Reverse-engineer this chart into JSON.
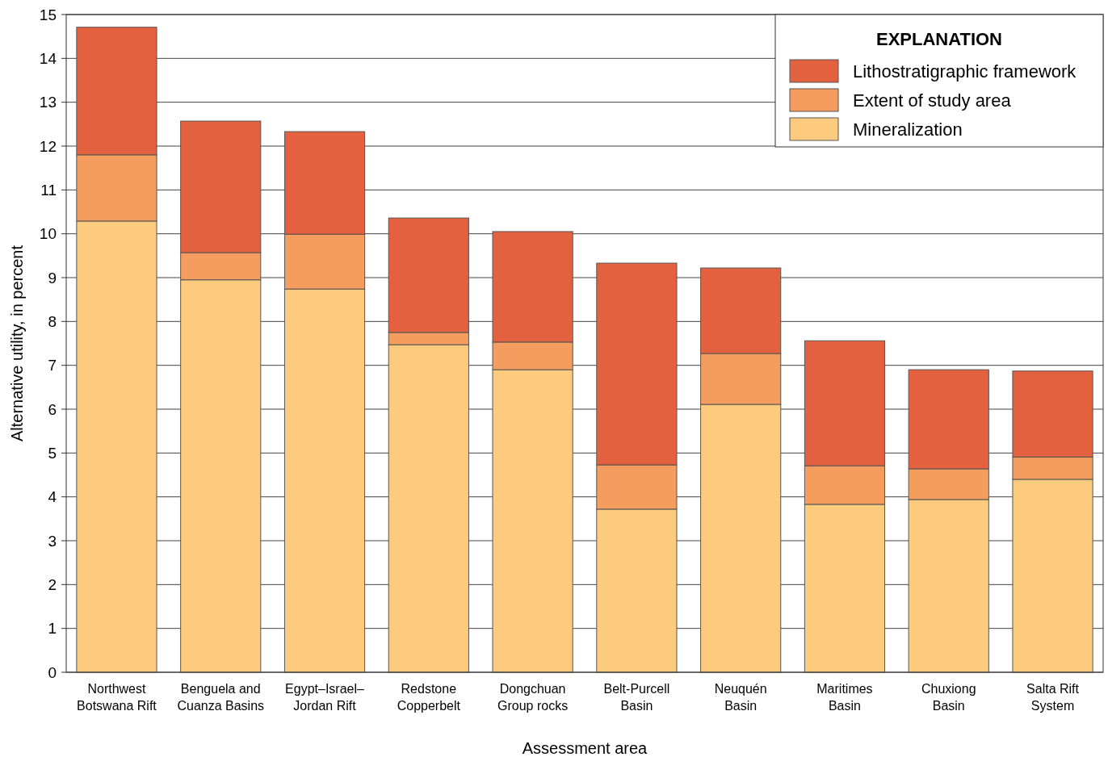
{
  "chart_data": {
    "type": "bar",
    "stacked": true,
    "xlabel": "Assessment area",
    "ylabel": "Alternative utility, in percent",
    "legend_title": "EXPLANATION",
    "legend": "top right",
    "grid": "y",
    "categories": [
      "Northwest Botswana Rift",
      "Benguela and Cuanza Basins",
      "Egypt–Israel–Jordan Rift",
      "Redstone Copperbelt",
      "Dongchuan Group rocks",
      "Belt-Purcell Basin",
      "Neuquén Basin",
      "Maritimes Basin",
      "Chuxiong Basin",
      "Salta Rift System"
    ],
    "ylim": [
      0,
      15
    ],
    "yticks": [
      0,
      1,
      2,
      3,
      4,
      5,
      6,
      7,
      8,
      9,
      10,
      11,
      12,
      13,
      14,
      15
    ],
    "series": [
      {
        "name": "Mineralization",
        "color": "#fdcb7d",
        "values": [
          10.29,
          8.95,
          8.74,
          7.47,
          6.9,
          3.72,
          6.11,
          3.83,
          3.94,
          4.4
        ]
      },
      {
        "name": "Extent of study area",
        "color": "#f59d5e",
        "values": [
          1.51,
          0.62,
          1.25,
          0.28,
          0.63,
          1.01,
          1.16,
          0.88,
          0.7,
          0.51
        ]
      },
      {
        "name": "Lithostratigraphic framework",
        "color": "#e4613f",
        "values": [
          2.91,
          3.0,
          2.34,
          2.61,
          2.52,
          4.6,
          1.95,
          2.85,
          2.26,
          1.96
        ]
      }
    ]
  }
}
